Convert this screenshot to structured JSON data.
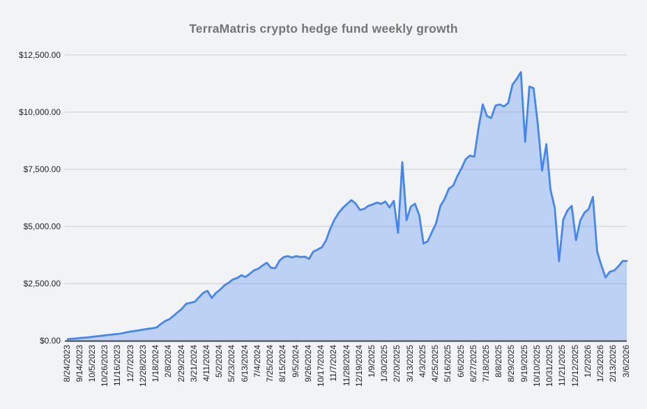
{
  "chart_data": {
    "type": "area",
    "title": "TerraMatris crypto hedge fund weekly growth",
    "xlabel": "",
    "ylabel": "",
    "data_frequency": "weekly",
    "x_range": [
      "8/24/2023",
      "3/6/2026"
    ],
    "ylim": [
      0,
      12500
    ],
    "grid": true,
    "legend": "none",
    "currency_prefix": "$",
    "y_ticks": [
      {
        "value": 0,
        "label": "$0.00"
      },
      {
        "value": 2500,
        "label": "$2,500.00"
      },
      {
        "value": 5000,
        "label": "$5,000.00"
      },
      {
        "value": 7500,
        "label": "$7,500.00"
      },
      {
        "value": 10000,
        "label": "$10,000.00"
      },
      {
        "value": 12500,
        "label": "$12,500.00"
      }
    ],
    "label_every_n_points": 3,
    "x_labels": [
      "8/24/2023",
      "9/14/2023",
      "10/5/2023",
      "10/26/2023",
      "11/16/2023",
      "12/7/2023",
      "12/28/2023",
      "1/18/2024",
      "2/8/2024",
      "2/29/2024",
      "3/21/2024",
      "4/11/2024",
      "5/2/2024",
      "5/23/2024",
      "6/13/2024",
      "7/4/2024",
      "7/25/2024",
      "8/15/2024",
      "9/5/2024",
      "9/26/2024",
      "10/17/2024",
      "11/7/2024",
      "11/28/2024",
      "12/19/2024",
      "1/9/2025",
      "1/30/2025",
      "2/20/2025",
      "3/13/2025",
      "4/3/2025",
      "4/25/2025",
      "5/16/2025",
      "6/6/2025",
      "6/27/2025",
      "7/18/2025",
      "8/8/2025",
      "8/29/2025",
      "9/19/2025",
      "10/10/2025",
      "10/31/2025",
      "11/21/2025",
      "12/12/2025",
      "1/2/2026",
      "1/23/2026",
      "2/13/2026",
      "3/6/2026"
    ],
    "values": [
      70,
      85,
      100,
      120,
      135,
      150,
      175,
      195,
      215,
      240,
      260,
      280,
      300,
      330,
      370,
      405,
      430,
      460,
      490,
      520,
      545,
      580,
      730,
      860,
      940,
      1090,
      1250,
      1400,
      1615,
      1660,
      1700,
      1900,
      2090,
      2185,
      1870,
      2090,
      2235,
      2420,
      2540,
      2680,
      2740,
      2865,
      2790,
      2930,
      3080,
      3150,
      3290,
      3415,
      3190,
      3170,
      3500,
      3660,
      3700,
      3640,
      3700,
      3660,
      3680,
      3580,
      3900,
      3990,
      4085,
      4390,
      4900,
      5300,
      5600,
      5815,
      5985,
      6150,
      6000,
      5720,
      5765,
      5900,
      5965,
      6045,
      5985,
      6090,
      5830,
      6120,
      4715,
      7815,
      5270,
      5860,
      5990,
      5500,
      4250,
      4350,
      4750,
      5150,
      5900,
      6200,
      6650,
      6780,
      7200,
      7550,
      7950,
      8100,
      8050,
      9300,
      10335,
      9825,
      9745,
      10285,
      10335,
      10250,
      10400,
      11200,
      11450,
      11750,
      8700,
      11120,
      11050,
      9470,
      7440,
      8600,
      6600,
      5815,
      3475,
      5300,
      5700,
      5900,
      4400,
      5250,
      5600,
      5760,
      6290,
      3900,
      3300,
      2765,
      3020,
      3070,
      3250,
      3480,
      3490
    ],
    "colors": {
      "line": "#4285f4",
      "fill": "rgba(66,133,244,0.30)",
      "grid": "#c9cbcd",
      "axis_line": "#3f4550",
      "title_text": "#757575",
      "tick_text": "#1f1f1f",
      "background": "#f2f3f4"
    }
  }
}
